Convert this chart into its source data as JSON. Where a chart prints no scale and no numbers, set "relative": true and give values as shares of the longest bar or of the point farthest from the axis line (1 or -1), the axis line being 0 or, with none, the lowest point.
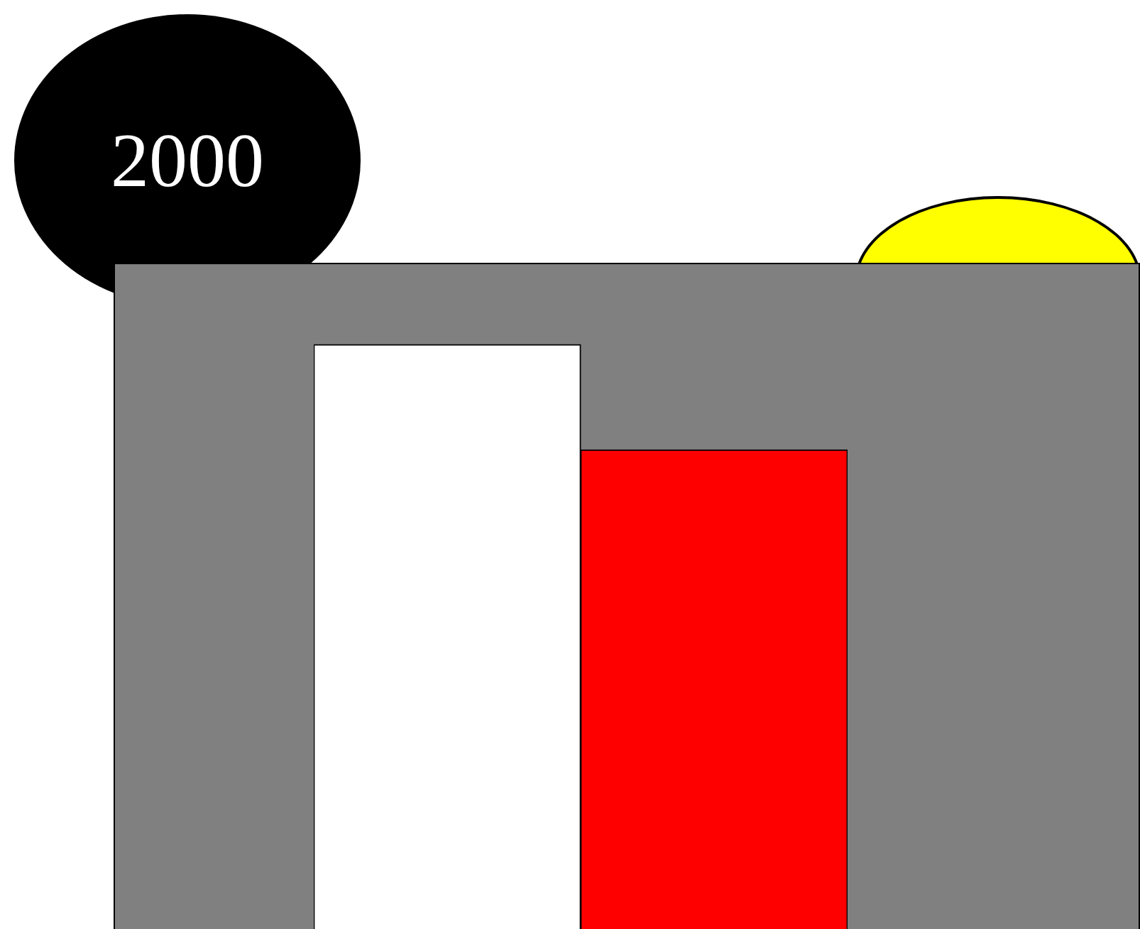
{
  "chart_data": {
    "type": "bar",
    "title": "2000",
    "categories": [
      null,
      null
    ],
    "values": [
      1,
      0.82
    ],
    "colors": [
      "#ffffff",
      "#ff0000"
    ],
    "relative": true
  }
}
